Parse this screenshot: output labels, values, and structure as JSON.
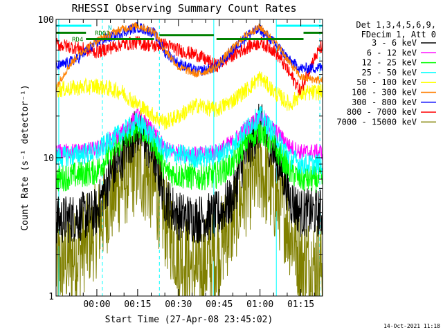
{
  "chart_data": {
    "type": "line",
    "title": "RHESSI Observing Summary Count Rates",
    "xlabel": "Start Time (27-Apr-08 23:45:02)",
    "ylabel": "Count Rate (s⁻¹ detector⁻¹)",
    "y_scale": "log",
    "ylim": [
      1,
      100
    ],
    "xlim_minutes": [
      0,
      98
    ],
    "x_ticks": [
      {
        "minute": 15,
        "label": "00:00"
      },
      {
        "minute": 30,
        "label": "00:15"
      },
      {
        "minute": 45,
        "label": "00:30"
      },
      {
        "minute": 60,
        "label": "00:45"
      },
      {
        "minute": 75,
        "label": "01:00"
      },
      {
        "minute": 90,
        "label": "01:15"
      }
    ],
    "y_ticks": [
      {
        "value": 1,
        "label": "1"
      },
      {
        "value": 10,
        "label": "10"
      },
      {
        "value": 100,
        "label": "100"
      }
    ],
    "legend": {
      "placement": "right",
      "header_lines": [
        "Det 1,3,4,5,6,9,",
        "FDecim 1, Att 0"
      ]
    },
    "series": [
      {
        "name": "3 - 6 keV",
        "color": "#000000",
        "points": [
          [
            0,
            3.5
          ],
          [
            8,
            3.7
          ],
          [
            15,
            4.0
          ],
          [
            24,
            10.0
          ],
          [
            30,
            16.0
          ],
          [
            36,
            10.0
          ],
          [
            40,
            5.0
          ],
          [
            45,
            3.8
          ],
          [
            52,
            3.6
          ],
          [
            59,
            3.8
          ],
          [
            65,
            5.0
          ],
          [
            71,
            12.0
          ],
          [
            75,
            17.0
          ],
          [
            80,
            11.0
          ],
          [
            86,
            5.0
          ],
          [
            90,
            4.0
          ],
          [
            98,
            4.0
          ]
        ]
      },
      {
        "name": "6 - 12 keV",
        "color": "#ff00ff",
        "points": [
          [
            0,
            11
          ],
          [
            8,
            11.2
          ],
          [
            15,
            11.5
          ],
          [
            24,
            15
          ],
          [
            30,
            20
          ],
          [
            36,
            15
          ],
          [
            40,
            11.5
          ],
          [
            45,
            11
          ],
          [
            52,
            10.5
          ],
          [
            59,
            11
          ],
          [
            65,
            13
          ],
          [
            71,
            17
          ],
          [
            75,
            20
          ],
          [
            80,
            16
          ],
          [
            86,
            12
          ],
          [
            90,
            11
          ],
          [
            98,
            11
          ]
        ]
      },
      {
        "name": "12 - 25 keV",
        "color": "#00ff00",
        "points": [
          [
            0,
            7
          ],
          [
            8,
            7.5
          ],
          [
            15,
            8
          ],
          [
            24,
            13
          ],
          [
            30,
            17
          ],
          [
            36,
            13
          ],
          [
            40,
            8
          ],
          [
            45,
            7.5
          ],
          [
            52,
            7.2
          ],
          [
            59,
            7.5
          ],
          [
            65,
            9
          ],
          [
            71,
            14
          ],
          [
            75,
            16
          ],
          [
            80,
            12
          ],
          [
            86,
            8
          ],
          [
            90,
            7
          ],
          [
            98,
            7
          ]
        ]
      },
      {
        "name": "25 - 50 keV",
        "color": "#00ffff",
        "points": [
          [
            0,
            10
          ],
          [
            8,
            10.5
          ],
          [
            15,
            11
          ],
          [
            24,
            15
          ],
          [
            30,
            18
          ],
          [
            36,
            14
          ],
          [
            40,
            11
          ],
          [
            45,
            10.5
          ],
          [
            52,
            10
          ],
          [
            59,
            10.5
          ],
          [
            65,
            12
          ],
          [
            71,
            17
          ],
          [
            75,
            20
          ],
          [
            80,
            15
          ],
          [
            86,
            10
          ],
          [
            90,
            9
          ],
          [
            98,
            9
          ]
        ]
      },
      {
        "name": "50 - 100 keV",
        "color": "#ffff00",
        "points": [
          [
            0,
            31
          ],
          [
            8,
            32
          ],
          [
            15,
            33
          ],
          [
            24,
            30
          ],
          [
            30,
            24
          ],
          [
            36,
            20
          ],
          [
            40,
            18
          ],
          [
            45,
            20
          ],
          [
            52,
            24
          ],
          [
            59,
            22
          ],
          [
            65,
            26
          ],
          [
            71,
            32
          ],
          [
            75,
            38
          ],
          [
            80,
            30
          ],
          [
            86,
            24
          ],
          [
            90,
            29
          ],
          [
            98,
            30
          ]
        ]
      },
      {
        "name": "100 - 300 keV",
        "color": "#ff7f00",
        "points": [
          [
            0,
            32
          ],
          [
            8,
            55
          ],
          [
            15,
            70
          ],
          [
            24,
            85
          ],
          [
            30,
            90
          ],
          [
            36,
            82
          ],
          [
            40,
            60
          ],
          [
            45,
            45
          ],
          [
            52,
            40
          ],
          [
            59,
            45
          ],
          [
            65,
            62
          ],
          [
            71,
            80
          ],
          [
            75,
            88
          ],
          [
            80,
            70
          ],
          [
            86,
            48
          ],
          [
            90,
            38
          ],
          [
            98,
            36
          ]
        ]
      },
      {
        "name": "300 - 800 keV",
        "color": "#0000ff",
        "points": [
          [
            0,
            45
          ],
          [
            8,
            52
          ],
          [
            15,
            68
          ],
          [
            24,
            80
          ],
          [
            30,
            88
          ],
          [
            36,
            80
          ],
          [
            40,
            58
          ],
          [
            45,
            48
          ],
          [
            52,
            42
          ],
          [
            59,
            45
          ],
          [
            65,
            60
          ],
          [
            71,
            78
          ],
          [
            75,
            85
          ],
          [
            80,
            68
          ],
          [
            86,
            50
          ],
          [
            90,
            44
          ],
          [
            98,
            45
          ]
        ]
      },
      {
        "name": "800 - 7000 keV",
        "color": "#ff0000",
        "points": [
          [
            0,
            66
          ],
          [
            8,
            62
          ],
          [
            15,
            58
          ],
          [
            24,
            66
          ],
          [
            30,
            68
          ],
          [
            36,
            64
          ],
          [
            40,
            66
          ],
          [
            45,
            60
          ],
          [
            52,
            55
          ],
          [
            59,
            46
          ],
          [
            65,
            55
          ],
          [
            71,
            64
          ],
          [
            75,
            68
          ],
          [
            80,
            60
          ],
          [
            86,
            40
          ],
          [
            90,
            30
          ],
          [
            98,
            65
          ]
        ]
      },
      {
        "name": "7000 - 15000 keV",
        "color": "#808000",
        "points": [
          [
            0,
            1.6
          ],
          [
            8,
            2.0
          ],
          [
            15,
            3.0
          ],
          [
            24,
            6.5
          ],
          [
            30,
            8.5
          ],
          [
            36,
            6.0
          ],
          [
            40,
            3.5
          ],
          [
            45,
            2.0
          ],
          [
            52,
            1.5
          ],
          [
            59,
            2.0
          ],
          [
            65,
            3.5
          ],
          [
            71,
            6.5
          ],
          [
            75,
            7.8
          ],
          [
            80,
            5.5
          ],
          [
            86,
            3.0
          ],
          [
            90,
            1.8
          ],
          [
            98,
            1.6
          ]
        ]
      }
    ],
    "annotations": [
      {
        "label": "RD01",
        "color": "#008000"
      },
      {
        "label": "RD4",
        "color": "#008000"
      },
      {
        "label": "N",
        "color": "#00cccc"
      }
    ],
    "green_bar_segments": [
      {
        "start_min": 0,
        "end_min": 11,
        "value": 80
      },
      {
        "start_min": 11,
        "end_min": 21,
        "value": 72
      },
      {
        "start_min": 21,
        "end_min": 36,
        "value": 72
      },
      {
        "start_min": 38,
        "end_min": 58,
        "value": 77
      },
      {
        "start_min": 59,
        "end_min": 91,
        "value": 72
      },
      {
        "start_min": 91,
        "end_min": 98,
        "value": 80
      }
    ],
    "cyan_bar_segments": [
      {
        "start_min": 0,
        "end_min": 13,
        "value": 90
      },
      {
        "start_min": 81,
        "end_min": 98,
        "value": 90
      }
    ],
    "vertical_markers": [
      {
        "minute": 1,
        "style": "solid",
        "color": "#00ffff"
      },
      {
        "minute": 17,
        "style": "dashed",
        "color": "#00ffff"
      },
      {
        "minute": 38,
        "style": "dashed",
        "color": "#00ffff"
      },
      {
        "minute": 58,
        "style": "solid",
        "color": "#00ffff"
      },
      {
        "minute": 81,
        "style": "solid",
        "color": "#00ffff"
      },
      {
        "minute": 97,
        "style": "dashed",
        "color": "#00ffff"
      }
    ]
  },
  "footer": {
    "timestamp": "14-Oct-2021 11:18"
  }
}
